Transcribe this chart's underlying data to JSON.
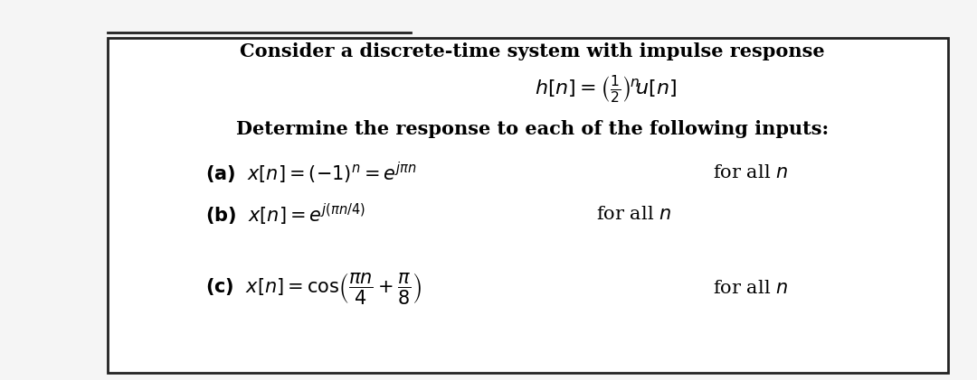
{
  "bg_color": "#f5f5f5",
  "box_color": "#ffffff",
  "border_color": "#222222",
  "text_color": "#000000",
  "figsize": [
    10.8,
    4.21
  ],
  "dpi": 100,
  "line1": "Consider a discrete-time system with impulse response",
  "line2": "$h[n] = (\\tfrac{1}{2})^n u[n]$",
  "line3": "Determine the response to each of the following inputs:",
  "line_a": "$(\\mathbf{a})$  $x[n] = (-1)^n = e^{j\\pi n}$     for all $n$",
  "line_b": "$(\\mathbf{b})$  $x[n] = e^{j(\\pi n/4)}$     for all $n$",
  "line_c_left": "$(\\mathbf{c})$  $x[n] = \\cos\\!\\left(\\dfrac{\\pi n}{4} + \\dfrac{\\pi}{8}\\right)$     for all $n$"
}
